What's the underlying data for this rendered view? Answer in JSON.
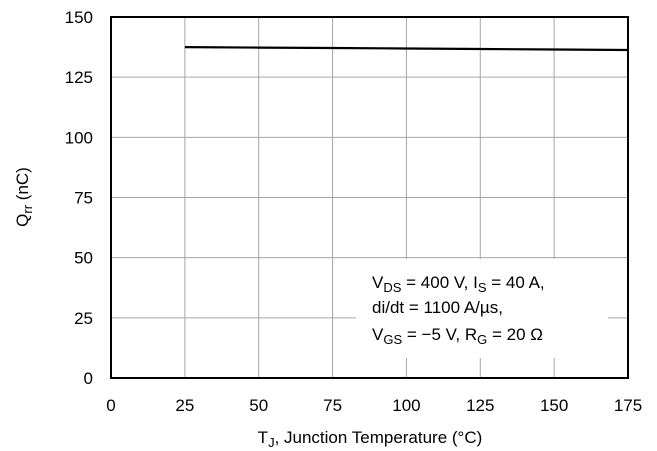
{
  "chart_data": {
    "type": "line",
    "xlim": [
      0,
      175
    ],
    "ylim": [
      0,
      150
    ],
    "x_ticks": [
      "0",
      "25",
      "50",
      "75",
      "100",
      "125",
      "150",
      "175"
    ],
    "y_ticks": [
      "0",
      "25",
      "50",
      "75",
      "100",
      "125",
      "150"
    ],
    "x_tick_values": [
      0,
      25,
      50,
      75,
      100,
      125,
      150,
      175
    ],
    "y_tick_values": [
      0,
      25,
      50,
      75,
      100,
      125,
      150
    ],
    "grid": true,
    "xlabel": {
      "main": "T",
      "sub": "J",
      "rest": ", Junction Temperature (°C)"
    },
    "ylabel": {
      "main": "Q",
      "sub": "rr",
      "rest": " (nC)"
    },
    "annotation": {
      "line1": {
        "a": "V",
        "a_sub": "DS",
        "b": " = 400 V, I",
        "b_sub": "S",
        "c": " = 40 A,"
      },
      "line2": "di/dt = 1100 A/µs,",
      "line3": {
        "a": "V",
        "a_sub": "GS",
        "b": " = −5 V, R",
        "b_sub": "G",
        "c": " = 20 Ω"
      }
    },
    "series": [
      {
        "x": [
          25,
          50,
          75,
          100,
          125,
          150,
          175
        ],
        "y": [
          137.5,
          137.3,
          137.1,
          136.9,
          136.7,
          136.5,
          136.3
        ]
      }
    ]
  }
}
